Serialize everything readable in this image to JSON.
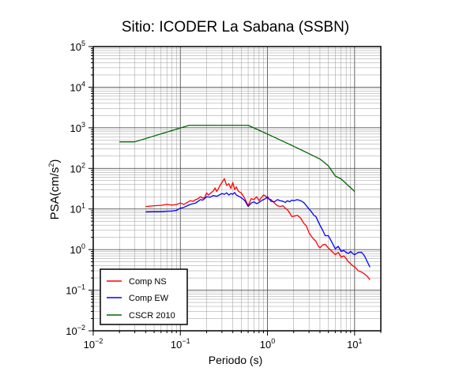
{
  "chart_data": {
    "type": "line",
    "title": "Sitio: ICODER La Sabana (SSBN)",
    "xlabel": "Periodo (s)",
    "ylabel_main": "PSA(cm/s",
    "ylabel_sup": "2",
    "ylabel_close": ")",
    "x_scale": "log",
    "y_scale": "log",
    "xlim": [
      0.01,
      20
    ],
    "ylim": [
      0.01,
      100000
    ],
    "grid": true,
    "legend_position": "bottom-left",
    "x_tick_labels": [
      {
        "base": "10",
        "exp": "−2",
        "value": 0.01
      },
      {
        "base": "10",
        "exp": "−1",
        "value": 0.1
      },
      {
        "base": "10",
        "exp": "0",
        "value": 1
      },
      {
        "base": "10",
        "exp": "1",
        "value": 10
      }
    ],
    "y_tick_labels": [
      {
        "base": "10",
        "exp": "−2",
        "value": 0.01
      },
      {
        "base": "10",
        "exp": "−1",
        "value": 0.1
      },
      {
        "base": "10",
        "exp": "0",
        "value": 1
      },
      {
        "base": "10",
        "exp": "1",
        "value": 10
      },
      {
        "base": "10",
        "exp": "2",
        "value": 100
      },
      {
        "base": "10",
        "exp": "3",
        "value": 1000
      },
      {
        "base": "10",
        "exp": "4",
        "value": 10000
      },
      {
        "base": "10",
        "exp": "5",
        "value": 100000
      }
    ],
    "series": [
      {
        "name": "Comp NS",
        "color": "#ff0000",
        "x": [
          0.04,
          0.05,
          0.06,
          0.07,
          0.08,
          0.09,
          0.1,
          0.11,
          0.12,
          0.13,
          0.14,
          0.15,
          0.16,
          0.17,
          0.18,
          0.19,
          0.2,
          0.21,
          0.22,
          0.23,
          0.24,
          0.25,
          0.26,
          0.27,
          0.28,
          0.29,
          0.3,
          0.32,
          0.34,
          0.36,
          0.38,
          0.4,
          0.42,
          0.44,
          0.46,
          0.48,
          0.5,
          0.55,
          0.6,
          0.65,
          0.7,
          0.75,
          0.8,
          0.85,
          0.9,
          0.95,
          1.0,
          1.1,
          1.2,
          1.3,
          1.4,
          1.5,
          1.6,
          1.7,
          1.8,
          1.9,
          2.0,
          2.2,
          2.4,
          2.6,
          2.8,
          3.0,
          3.2,
          3.4,
          3.6,
          3.8,
          4.0,
          4.3,
          4.6,
          5.0,
          5.5,
          6.0,
          6.5,
          7.0,
          7.5,
          8.0,
          8.5,
          9.0,
          9.5,
          10.0,
          11.0,
          12.0,
          13.0,
          14.0,
          15.0
        ],
        "y": [
          11.5,
          12.0,
          12.3,
          13.0,
          12.5,
          12.8,
          14.0,
          13.0,
          14.5,
          16.0,
          15.5,
          17.0,
          18.0,
          20.0,
          18.5,
          19.0,
          25.0,
          22.0,
          24.0,
          26.0,
          28.0,
          33.0,
          27.0,
          30.0,
          35.0,
          40.0,
          45.0,
          56.0,
          38.0,
          42.0,
          32.0,
          45.0,
          30.0,
          35.0,
          28.0,
          26.0,
          25.0,
          18.0,
          12.0,
          18.0,
          17.0,
          20.0,
          16.0,
          19.0,
          22.0,
          21.0,
          18.0,
          17.0,
          14.0,
          12.0,
          11.5,
          12.0,
          10.5,
          9.5,
          8.0,
          6.5,
          6.6,
          7.0,
          6.0,
          4.5,
          3.8,
          2.6,
          2.1,
          1.8,
          1.6,
          1.25,
          1.1,
          1.3,
          1.35,
          1.1,
          0.9,
          0.75,
          0.85,
          0.65,
          0.7,
          0.6,
          0.5,
          0.45,
          0.4,
          0.38,
          0.3,
          0.28,
          0.25,
          0.22,
          0.18
        ]
      },
      {
        "name": "Comp EW",
        "color": "#0000ff",
        "x": [
          0.04,
          0.05,
          0.06,
          0.07,
          0.08,
          0.09,
          0.1,
          0.11,
          0.12,
          0.13,
          0.14,
          0.15,
          0.16,
          0.17,
          0.18,
          0.19,
          0.2,
          0.22,
          0.24,
          0.26,
          0.28,
          0.3,
          0.32,
          0.34,
          0.36,
          0.38,
          0.4,
          0.42,
          0.44,
          0.46,
          0.48,
          0.5,
          0.55,
          0.6,
          0.65,
          0.7,
          0.75,
          0.8,
          0.85,
          0.9,
          0.95,
          1.0,
          1.1,
          1.2,
          1.3,
          1.4,
          1.5,
          1.6,
          1.7,
          1.8,
          1.9,
          2.0,
          2.2,
          2.4,
          2.6,
          2.8,
          3.0,
          3.2,
          3.4,
          3.6,
          3.8,
          4.0,
          4.3,
          4.6,
          5.0,
          5.5,
          6.0,
          6.5,
          7.0,
          7.5,
          8.0,
          8.5,
          9.0,
          9.5,
          10.0,
          11.0,
          12.0,
          13.0,
          14.0,
          15.0
        ],
        "y": [
          8.5,
          8.6,
          8.6,
          8.8,
          8.9,
          9.2,
          10.5,
          11.0,
          12.0,
          13.0,
          13.5,
          14.0,
          15.5,
          17.0,
          16.5,
          18.0,
          20.0,
          19.5,
          21.5,
          20.5,
          22.0,
          24.0,
          23.0,
          25.0,
          22.0,
          24.0,
          23.0,
          25.5,
          22.0,
          21.0,
          20.0,
          19.0,
          16.0,
          11.5,
          14.0,
          15.0,
          13.5,
          14.5,
          16.0,
          17.0,
          18.0,
          20.0,
          15.5,
          15.0,
          17.0,
          16.0,
          15.5,
          14.5,
          16.0,
          15.0,
          16.5,
          16.0,
          17.0,
          16.0,
          14.5,
          12.0,
          10.0,
          8.5,
          7.0,
          6.5,
          5.0,
          4.0,
          3.0,
          2.2,
          2.2,
          1.5,
          1.05,
          1.2,
          0.9,
          0.95,
          0.85,
          0.8,
          0.9,
          0.8,
          0.75,
          0.85,
          0.86,
          0.7,
          0.5,
          0.37
        ]
      },
      {
        "name": "CSCR 2010",
        "color": "#006600",
        "x": [
          0.02,
          0.03,
          0.1259,
          0.2,
          0.3,
          0.4,
          0.5,
          0.6,
          1.0,
          2.0,
          3.0,
          4.0,
          5.0,
          6.0,
          7.0,
          8.0,
          10.0
        ],
        "y": [
          450,
          450,
          1150,
          1150,
          1150,
          1150,
          1150,
          1150,
          700,
          350,
          230,
          170,
          115,
          65,
          55,
          42,
          27
        ]
      }
    ]
  }
}
